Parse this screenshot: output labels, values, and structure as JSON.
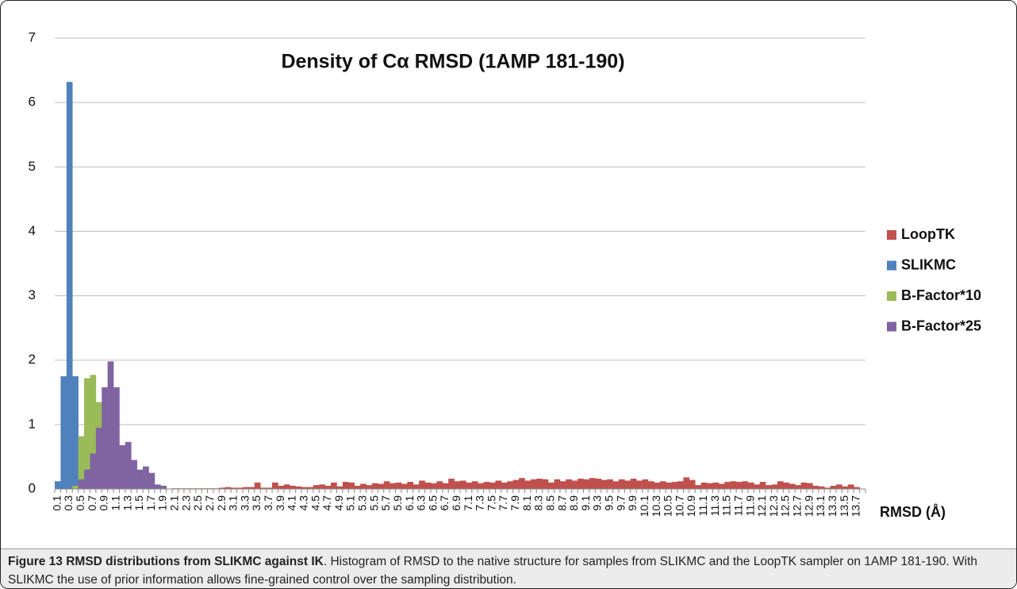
{
  "chart_data": {
    "type": "bar",
    "title": "Density of Cα RMSD  (1AMP 181-190)",
    "x_label": "RMSD (Å)",
    "categories": [
      "0.1",
      null,
      "0.3",
      null,
      "0.5",
      null,
      "0.7",
      null,
      "0.9",
      null,
      "1.1",
      null,
      "1.3",
      null,
      "1.5",
      null,
      "1.7",
      null,
      "1.9",
      null,
      "2.1",
      null,
      "2.3",
      null,
      "2.5",
      null,
      "2.7",
      null,
      "2.9",
      null,
      "3.1",
      null,
      "3.3",
      null,
      "3.5",
      null,
      "3.7",
      null,
      "3.9",
      null,
      "4.1",
      null,
      "4.3",
      null,
      "4.5",
      null,
      "4.7",
      null,
      "4.9",
      null,
      "5.1",
      null,
      "5.3",
      null,
      "5.5",
      null,
      "5.7",
      null,
      "5.9",
      null,
      "6.1",
      null,
      "6.3",
      null,
      "6.5",
      null,
      "6.7",
      null,
      "6.9",
      null,
      "7.1",
      null,
      "7.3",
      null,
      "7.5",
      null,
      "7.7",
      null,
      "7.9",
      null,
      "8.1",
      null,
      "8.3",
      null,
      "8.5",
      null,
      "8.7",
      null,
      "8.9",
      null,
      "9.1",
      null,
      "9.3",
      null,
      "9.5",
      null,
      "9.7",
      null,
      "9.9",
      null,
      "10.1",
      null,
      "10.3",
      null,
      "10.5",
      null,
      "10.7",
      null,
      "10.9",
      null,
      "11.1",
      null,
      "11.3",
      null,
      "11.5",
      null,
      "11.7",
      null,
      "11.9",
      null,
      "12.1",
      null,
      "12.3",
      null,
      "12.5",
      null,
      "12.7",
      null,
      "12.9",
      null,
      "13.1",
      null,
      "13.3",
      null,
      "13.5",
      null,
      "13.7",
      null
    ],
    "series": [
      {
        "name": "LoopTK",
        "color": "#c0504d",
        "values": [
          0,
          0,
          0,
          0,
          0,
          0,
          0,
          0,
          0,
          0,
          0,
          0,
          0,
          0,
          0,
          0,
          0,
          0,
          0,
          0,
          0.01,
          0.01,
          0.01,
          0.01,
          0.01,
          0.01,
          0.01,
          0.01,
          0.02,
          0.03,
          0.02,
          0.02,
          0.03,
          0.03,
          0.1,
          0.02,
          0.02,
          0.1,
          0.05,
          0.07,
          0.05,
          0.04,
          0.03,
          0.03,
          0.06,
          0.07,
          0.05,
          0.1,
          0.04,
          0.11,
          0.1,
          0.05,
          0.08,
          0.06,
          0.09,
          0.08,
          0.12,
          0.09,
          0.1,
          0.08,
          0.11,
          0.07,
          0.13,
          0.1,
          0.09,
          0.12,
          0.09,
          0.16,
          0.12,
          0.13,
          0.1,
          0.12,
          0.09,
          0.11,
          0.1,
          0.13,
          0.1,
          0.12,
          0.14,
          0.17,
          0.13,
          0.15,
          0.16,
          0.15,
          0.1,
          0.15,
          0.12,
          0.15,
          0.13,
          0.16,
          0.15,
          0.17,
          0.16,
          0.14,
          0.15,
          0.12,
          0.15,
          0.13,
          0.16,
          0.13,
          0.15,
          0.12,
          0.1,
          0.12,
          0.1,
          0.11,
          0.12,
          0.18,
          0.14,
          0.06,
          0.1,
          0.09,
          0.1,
          0.08,
          0.11,
          0.12,
          0.11,
          0.12,
          0.1,
          0.07,
          0.11,
          0.06,
          0.07,
          0.12,
          0.1,
          0.08,
          0.06,
          0.1,
          0.09,
          0.05,
          0.04,
          0.02,
          0.05,
          0.07,
          0.04,
          0.07,
          0.03,
          0
        ]
      },
      {
        "name": "SLIKMC",
        "color": "#4f81bd",
        "values": [
          0.12,
          1.75,
          6.32,
          1.75,
          0,
          0,
          0,
          0,
          0,
          0,
          0,
          0,
          0,
          0,
          0,
          0,
          0,
          0,
          0,
          0,
          0,
          0,
          0,
          0,
          0,
          0,
          0,
          0,
          0,
          0,
          0,
          0,
          0,
          0,
          0,
          0,
          0,
          0,
          0,
          0,
          0,
          0,
          0,
          0,
          0,
          0,
          0,
          0,
          0,
          0,
          0,
          0,
          0,
          0,
          0,
          0,
          0,
          0,
          0,
          0,
          0,
          0,
          0,
          0,
          0,
          0,
          0,
          0,
          0,
          0,
          0,
          0,
          0,
          0,
          0,
          0,
          0,
          0,
          0,
          0,
          0,
          0,
          0,
          0,
          0,
          0,
          0,
          0,
          0,
          0,
          0,
          0,
          0,
          0,
          0,
          0,
          0,
          0,
          0,
          0,
          0,
          0,
          0,
          0,
          0,
          0,
          0,
          0,
          0,
          0,
          0,
          0,
          0,
          0,
          0,
          0,
          0,
          0,
          0,
          0,
          0,
          0,
          0,
          0,
          0,
          0,
          0,
          0,
          0,
          0,
          0,
          0,
          0,
          0,
          0,
          0,
          0,
          0
        ]
      },
      {
        "name": "B-Factor*10",
        "color": "#9bbb59",
        "values": [
          0,
          0,
          0,
          0.05,
          0.82,
          1.72,
          1.77,
          1.35,
          1.0,
          0.5,
          0.2,
          0,
          0,
          0,
          0,
          0,
          0,
          0,
          0,
          0,
          0,
          0,
          0,
          0,
          0,
          0,
          0,
          0,
          0,
          0,
          0,
          0,
          0,
          0,
          0,
          0,
          0,
          0,
          0,
          0,
          0,
          0,
          0,
          0,
          0,
          0,
          0,
          0,
          0,
          0,
          0,
          0,
          0,
          0,
          0,
          0,
          0,
          0,
          0,
          0,
          0,
          0,
          0,
          0,
          0,
          0,
          0,
          0,
          0,
          0,
          0,
          0,
          0,
          0,
          0,
          0,
          0,
          0,
          0,
          0,
          0,
          0,
          0,
          0,
          0,
          0,
          0,
          0,
          0,
          0,
          0,
          0,
          0,
          0,
          0,
          0,
          0,
          0,
          0,
          0,
          0,
          0,
          0,
          0,
          0,
          0,
          0,
          0,
          0,
          0,
          0,
          0,
          0,
          0,
          0,
          0,
          0,
          0,
          0,
          0,
          0,
          0,
          0,
          0,
          0,
          0,
          0,
          0,
          0,
          0,
          0,
          0,
          0,
          0,
          0,
          0,
          0,
          0
        ]
      },
      {
        "name": "B-Factor*25",
        "color": "#8064a2",
        "values": [
          0,
          0,
          0,
          0,
          0.15,
          0.3,
          0.55,
          0.95,
          1.58,
          1.98,
          1.58,
          0.68,
          0.73,
          0.45,
          0.3,
          0.35,
          0.25,
          0.07,
          0.05,
          0,
          0,
          0,
          0,
          0,
          0,
          0,
          0,
          0,
          0,
          0,
          0,
          0,
          0,
          0,
          0,
          0,
          0,
          0,
          0,
          0,
          0,
          0,
          0,
          0,
          0,
          0,
          0,
          0,
          0,
          0,
          0,
          0,
          0,
          0,
          0,
          0,
          0,
          0,
          0,
          0,
          0,
          0,
          0,
          0,
          0,
          0,
          0,
          0,
          0,
          0,
          0,
          0,
          0,
          0,
          0,
          0,
          0,
          0,
          0,
          0,
          0,
          0,
          0,
          0,
          0,
          0,
          0,
          0,
          0,
          0,
          0,
          0,
          0,
          0,
          0,
          0,
          0,
          0,
          0,
          0,
          0,
          0,
          0,
          0,
          0,
          0,
          0,
          0,
          0,
          0,
          0,
          0,
          0,
          0,
          0,
          0,
          0,
          0,
          0,
          0,
          0,
          0,
          0,
          0,
          0,
          0,
          0,
          0,
          0,
          0,
          0,
          0,
          0,
          0,
          0,
          0,
          0,
          0
        ]
      }
    ],
    "ylim": [
      0,
      7
    ],
    "yticks": [
      0,
      1,
      2,
      3,
      4,
      5,
      6,
      7
    ],
    "grid": true,
    "legend": "right"
  },
  "caption": {
    "title": "Figure 13 RMSD distributions from SLIKMC against IK",
    "text": ". Histogram of RMSD to the native structure for samples from SLIKMC and the LoopTK sampler on 1AMP 181-190. With SLIKMC the use of prior information allows fine-grained control over the sampling distribution."
  }
}
